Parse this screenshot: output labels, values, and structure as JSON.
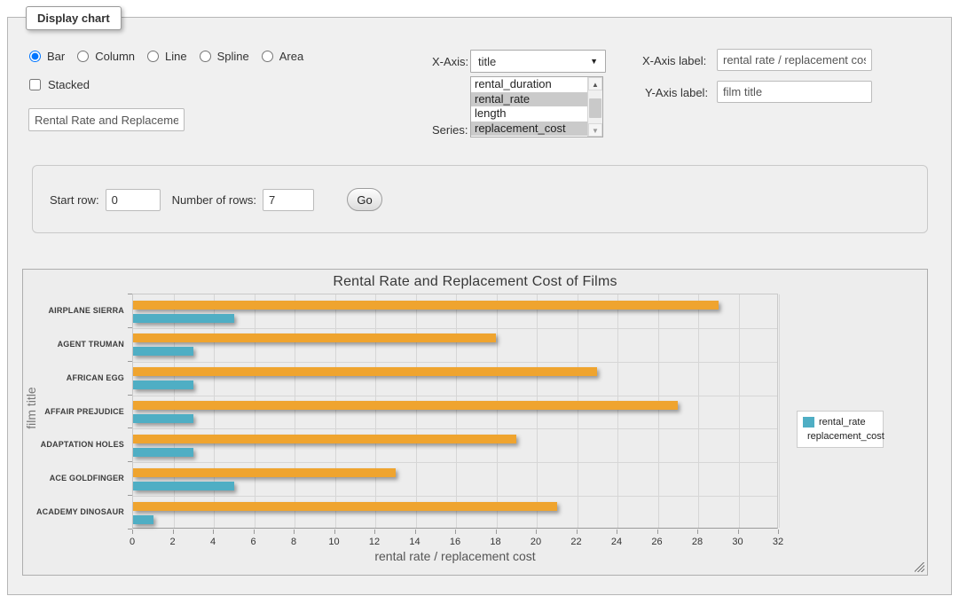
{
  "display_chart": {
    "legend": "Display chart",
    "chart_types": [
      {
        "label": "Bar",
        "selected": true
      },
      {
        "label": "Column",
        "selected": false
      },
      {
        "label": "Line",
        "selected": false
      },
      {
        "label": "Spline",
        "selected": false
      },
      {
        "label": "Area",
        "selected": false
      }
    ],
    "stacked": {
      "label": "Stacked",
      "checked": false
    },
    "title_input": {
      "value": "Rental Rate and Replacement Cost of Films"
    },
    "x_axis": {
      "label": "X-Axis:",
      "value": "title"
    },
    "series": {
      "label": "Series:",
      "options": [
        {
          "label": "rental_duration",
          "selected": false
        },
        {
          "label": "rental_rate",
          "selected": true
        },
        {
          "label": "length",
          "selected": false
        },
        {
          "label": "replacement_cost",
          "selected": true
        }
      ]
    },
    "x_axis_label": {
      "label": "X-Axis label:",
      "value": "rental rate / replacement cost"
    },
    "y_axis_label": {
      "label": "Y-Axis label:",
      "value": "film title"
    }
  },
  "row_controls": {
    "start_row_label": "Start row:",
    "start_row_value": "0",
    "num_rows_label": "Number of rows:",
    "num_rows_value": "7",
    "go_label": "Go"
  },
  "chart_data": {
    "type": "bar",
    "orientation": "horizontal",
    "title": "Rental Rate and Replacement Cost of Films",
    "xlabel": "rental rate / replacement cost",
    "ylabel": "film title",
    "categories": [
      "AIRPLANE SIERRA",
      "AGENT TRUMAN",
      "AFRICAN EGG",
      "AFFAIR PREJUDICE",
      "ADAPTATION HOLES",
      "ACE GOLDFINGER",
      "ACADEMY DINOSAUR"
    ],
    "series": [
      {
        "name": "rental_rate",
        "color": "#4FAEC4",
        "values": [
          4.99,
          2.99,
          2.99,
          2.99,
          2.99,
          4.99,
          0.99
        ]
      },
      {
        "name": "replacement_cost",
        "color": "#EFA42F",
        "values": [
          28.99,
          17.99,
          22.99,
          26.99,
          18.99,
          12.99,
          20.99
        ]
      }
    ],
    "xlim": [
      0,
      32
    ],
    "xtick_step": 2,
    "grid": true,
    "legend_position": "right"
  }
}
